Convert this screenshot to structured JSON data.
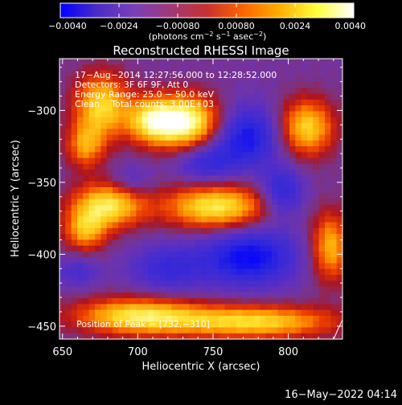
{
  "chart_data": {
    "type": "heatmap",
    "title": "Reconstructed RHESSI Image",
    "xlabel": "Heliocentric X (arcsec)",
    "ylabel": "Heliocentric Y (arcsec)",
    "x_range": [
      648,
      836
    ],
    "y_range": [
      -459,
      -264
    ],
    "x_ticks": [
      650,
      700,
      750,
      800
    ],
    "x_tick_labels": [
      "650",
      "700",
      "750",
      "800"
    ],
    "y_ticks": [
      -300,
      -350,
      -400,
      -450
    ],
    "y_tick_labels": [
      "−300",
      "−350",
      "−400",
      "−450"
    ],
    "colorbar": {
      "min": -0.004,
      "max": 0.004,
      "ticks": [
        -0.004,
        -0.0024,
        -0.0008,
        0.0008,
        0.0024,
        0.004
      ],
      "tick_labels": [
        "−0.0040",
        "−0.0024",
        "−0.00080",
        "0.00080",
        "0.0024",
        "0.0040"
      ],
      "unit_parts": [
        "(photons cm",
        "−2",
        " s",
        "−1",
        " asec",
        "−2",
        ")"
      ],
      "colors": [
        "#0000ff",
        "#4a2cc7",
        "#7a3fb8",
        "#a03a78",
        "#c83030",
        "#ff6600",
        "#ffb000",
        "#ffff40",
        "#ffffff"
      ]
    },
    "annotations": [
      "17−Aug−2014 12:27:56.000 to 12:28:52.000",
      "Detectors: 3F 6F 9F, Att 0",
      "Energy Range: 25.0 − 50.0 keV",
      "Clean    Total counts: 3.00E+03"
    ],
    "peak_label": "Position of Peak = [732,−310]",
    "peak": [
      732,
      -310
    ],
    "sources": [
      {
        "x": 731,
        "y": -308,
        "sx": 17,
        "sy": 13,
        "amp": 1.0
      },
      {
        "x": 708,
        "y": -307,
        "sx": 11,
        "sy": 11,
        "amp": 0.55
      },
      {
        "x": 676,
        "y": -297,
        "sx": 13,
        "sy": 16,
        "amp": 0.72
      },
      {
        "x": 665,
        "y": -325,
        "sx": 9,
        "sy": 11,
        "amp": 0.5
      },
      {
        "x": 680,
        "y": -366,
        "sx": 17,
        "sy": 11,
        "amp": 0.78
      },
      {
        "x": 665,
        "y": -384,
        "sx": 10,
        "sy": 10,
        "amp": 0.55
      },
      {
        "x": 752,
        "y": -367,
        "sx": 24,
        "sy": 11,
        "amp": 0.8
      },
      {
        "x": 812,
        "y": -312,
        "sx": 13,
        "sy": 14,
        "amp": 0.72
      },
      {
        "x": 828,
        "y": -395,
        "sx": 9,
        "sy": 17,
        "amp": 0.62
      },
      {
        "x": 700,
        "y": -443,
        "sx": 30,
        "sy": 9,
        "amp": 0.75
      },
      {
        "x": 778,
        "y": -447,
        "sx": 38,
        "sy": 8,
        "amp": 0.72
      }
    ],
    "troughs": [
      {
        "x": 772,
        "y": -318,
        "sx": 17,
        "sy": 15,
        "amp": 0.55
      },
      {
        "x": 745,
        "y": -337,
        "sx": 14,
        "sy": 10,
        "amp": 0.35
      },
      {
        "x": 696,
        "y": -349,
        "sx": 10,
        "sy": 8,
        "amp": 0.22
      },
      {
        "x": 774,
        "y": -402,
        "sx": 22,
        "sy": 14,
        "amp": 0.6
      },
      {
        "x": 720,
        "y": -410,
        "sx": 18,
        "sy": 12,
        "amp": 0.35
      },
      {
        "x": 796,
        "y": -357,
        "sx": 10,
        "sy": 12,
        "amp": 0.45
      },
      {
        "x": 660,
        "y": -412,
        "sx": 10,
        "sy": 8,
        "amp": 0.25
      }
    ],
    "grid": false,
    "footer_date": "16−May−2022 04:14"
  }
}
